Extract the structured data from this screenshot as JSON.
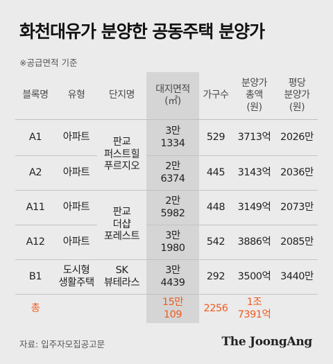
{
  "title": "화천대유가 분양한 공동주택 분양가",
  "note": "※공급면적 기준",
  "columns": {
    "block": "블록명",
    "type": "유형",
    "complex": "단지명",
    "land_area": "대지면적\n(㎡)",
    "households": "가구수",
    "total_price": "분양가\n총액\n(원)",
    "price_per_pyeong": "평당\n분양가\n(원)"
  },
  "rows": [
    {
      "block": "A1",
      "type": "아파트",
      "land_area": "3만\n1334",
      "households": "529",
      "total_price": "3713억",
      "price_per_pyeong": "2026만"
    },
    {
      "block": "A2",
      "type": "아파트",
      "land_area": "2만\n6374",
      "households": "445",
      "total_price": "3143억",
      "price_per_pyeong": "2036만"
    },
    {
      "block": "A11",
      "type": "아파트",
      "land_area": "2만\n5982",
      "households": "448",
      "total_price": "3149억",
      "price_per_pyeong": "2073만"
    },
    {
      "block": "A12",
      "type": "아파트",
      "land_area": "3만\n1980",
      "households": "542",
      "total_price": "3886억",
      "price_per_pyeong": "2085만"
    },
    {
      "block": "B1",
      "type": "도시형\n생활주택",
      "land_area": "3만\n4439",
      "households": "292",
      "total_price": "3500억",
      "price_per_pyeong": "3440만"
    }
  ],
  "complexes": [
    "판교\n퍼스트힐\n푸르지오",
    "판교\n더샵\n포레스트",
    "SK\n뷰테라스"
  ],
  "total": {
    "label": "총",
    "land_area": "15만\n109",
    "households": "2256",
    "total_price": "1조\n7391억"
  },
  "source": "자료: 입주자모집공고문",
  "logo": "The JoongAng",
  "colors": {
    "background": "#ebebeb",
    "highlight_column": "#d5d5d5",
    "total_accent": "#ee5b1f"
  }
}
